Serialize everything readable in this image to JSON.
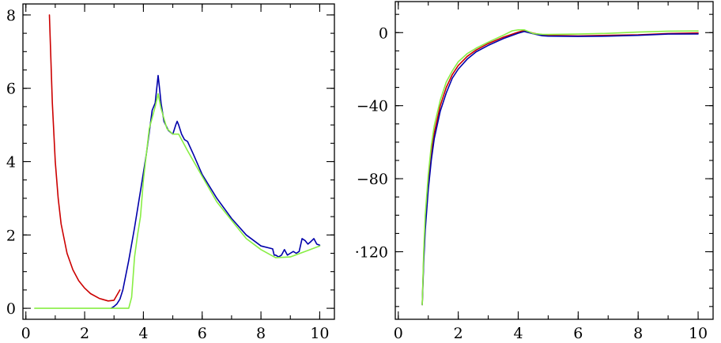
{
  "chart_data": [
    {
      "type": "line",
      "title": "",
      "xlabel": "",
      "ylabel": "",
      "xlim": [
        -0.1,
        10.5
      ],
      "ylim": [
        -0.3,
        8.3
      ],
      "xticks": [
        0,
        2,
        4,
        6,
        8,
        10
      ],
      "xtick_labels": [
        "0",
        "2",
        "4",
        "6",
        "8",
        "10"
      ],
      "yticks": [
        0,
        2,
        4,
        6,
        8
      ],
      "ytick_labels": [
        "0",
        "2",
        "4",
        "6",
        "8"
      ],
      "grid": false,
      "legend": "none",
      "series": [
        {
          "color": "#cc0000",
          "x": [
            0.8,
            0.9,
            1.0,
            1.1,
            1.2,
            1.4,
            1.6,
            1.8,
            2.0,
            2.2,
            2.5,
            2.8,
            3.0,
            3.2
          ],
          "y": [
            8.0,
            5.6,
            4.0,
            3.0,
            2.3,
            1.5,
            1.05,
            0.75,
            0.55,
            0.4,
            0.27,
            0.2,
            0.22,
            0.5
          ]
        },
        {
          "color": "#0000aa",
          "x": [
            2.9,
            3.0,
            3.1,
            3.2,
            3.3,
            3.5,
            3.7,
            3.9,
            4.1,
            4.3,
            4.4,
            4.5,
            4.55,
            4.6,
            4.7,
            4.85,
            5.0,
            5.1,
            5.15,
            5.2,
            5.3,
            5.4,
            5.5,
            5.7,
            6.0,
            6.5,
            7.0,
            7.5,
            8.0,
            8.4,
            8.45,
            8.5,
            8.6,
            8.7,
            8.8,
            8.9,
            9.0,
            9.1,
            9.2,
            9.3,
            9.4,
            9.5,
            9.6,
            9.7,
            9.8,
            9.9,
            10.0
          ],
          "y": [
            0.0,
            0.05,
            0.12,
            0.25,
            0.5,
            1.3,
            2.2,
            3.2,
            4.2,
            5.4,
            5.6,
            6.35,
            6.0,
            5.6,
            5.1,
            4.85,
            4.75,
            5.0,
            5.1,
            5.0,
            4.75,
            4.6,
            4.55,
            4.2,
            3.65,
            3.0,
            2.45,
            2.0,
            1.7,
            1.62,
            1.45,
            1.45,
            1.4,
            1.45,
            1.6,
            1.45,
            1.5,
            1.55,
            1.5,
            1.55,
            1.9,
            1.85,
            1.75,
            1.82,
            1.9,
            1.75,
            1.72
          ]
        },
        {
          "color": "#88ee44",
          "x": [
            0.3,
            1.0,
            2.0,
            3.0,
            3.5,
            3.6,
            3.7,
            3.8,
            3.9,
            4.0,
            4.2,
            4.4,
            4.5,
            4.6,
            4.8,
            5.0,
            5.2,
            5.5,
            6.0,
            6.5,
            7.0,
            7.5,
            8.0,
            8.5,
            9.0,
            9.5,
            10.0
          ],
          "y": [
            0.0,
            0.0,
            0.0,
            0.0,
            0.0,
            0.3,
            1.4,
            2.0,
            2.5,
            3.5,
            4.9,
            5.5,
            5.85,
            5.45,
            4.9,
            4.75,
            4.75,
            4.3,
            3.6,
            2.9,
            2.4,
            1.9,
            1.6,
            1.38,
            1.4,
            1.55,
            1.7
          ]
        }
      ]
    },
    {
      "type": "line",
      "title": "",
      "xlabel": "",
      "ylabel": "",
      "xlim": [
        -0.1,
        10.5
      ],
      "ylim": [
        -157,
        17
      ],
      "xticks": [
        0,
        2,
        4,
        6,
        8,
        10
      ],
      "xtick_labels": [
        "0",
        "2",
        "4",
        "6",
        "8",
        "10"
      ],
      "yticks": [
        0,
        -40,
        -80,
        -120
      ],
      "ytick_labels": [
        "0",
        "−40",
        "−80",
        "·120"
      ],
      "grid": false,
      "legend": "none",
      "series": [
        {
          "color": "#cc0000",
          "x": [
            0.8,
            0.85,
            0.9,
            1.0,
            1.1,
            1.2,
            1.4,
            1.6,
            1.8,
            2.0,
            2.3,
            2.6,
            3.0,
            3.5,
            4.0,
            4.2,
            4.5,
            4.8,
            5.0,
            6.0,
            7.0,
            8.0,
            9.0,
            10.0
          ],
          "y": [
            -149,
            -122,
            -104,
            -82,
            -66,
            -55,
            -40,
            -30,
            -23,
            -18,
            -13,
            -9.5,
            -6,
            -2.5,
            0.3,
            1.2,
            -0.3,
            -1.2,
            -1.5,
            -1.8,
            -1.5,
            -1.2,
            -0.5,
            -0.2
          ]
        },
        {
          "color": "#0000aa",
          "x": [
            0.8,
            0.85,
            0.9,
            1.0,
            1.1,
            1.2,
            1.4,
            1.6,
            1.8,
            2.0,
            2.3,
            2.6,
            3.0,
            3.5,
            4.0,
            4.2,
            4.5,
            4.8,
            5.0,
            6.0,
            7.0,
            8.0,
            9.0,
            10.0
          ],
          "y": [
            -149,
            -125,
            -108,
            -86,
            -70,
            -58,
            -43,
            -33,
            -25,
            -20,
            -14.5,
            -10.5,
            -7,
            -3.3,
            -0.3,
            0.6,
            -0.6,
            -1.7,
            -1.9,
            -2.1,
            -1.9,
            -1.5,
            -0.8,
            -0.7
          ]
        },
        {
          "color": "#88ee44",
          "x": [
            0.8,
            0.85,
            0.9,
            1.0,
            1.1,
            1.2,
            1.4,
            1.6,
            1.8,
            2.0,
            2.3,
            2.6,
            3.0,
            3.5,
            3.8,
            4.0,
            4.2,
            4.5,
            4.8,
            5.0,
            6.0,
            7.0,
            8.0,
            9.0,
            10.0
          ],
          "y": [
            -149,
            -119,
            -100,
            -78,
            -62,
            -51,
            -37,
            -27,
            -21,
            -16,
            -11.5,
            -8.5,
            -5.2,
            -1.5,
            1.0,
            1.5,
            1.5,
            -0.5,
            -0.9,
            -1.0,
            -0.8,
            -0.4,
            0.3,
            0.8,
            0.9
          ]
        }
      ]
    }
  ]
}
